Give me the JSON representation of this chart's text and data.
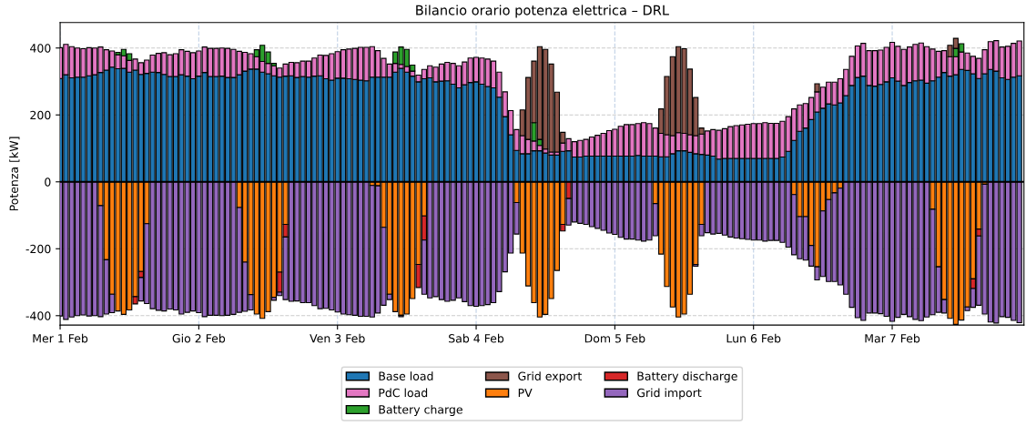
{
  "chart_data": {
    "type": "bar",
    "stacked": true,
    "title": "Bilancio orario potenza elettrica – DRL",
    "ylabel": "Potenza [kW]",
    "categories": [
      "Mer 1 Feb",
      null,
      null,
      null,
      null,
      null,
      null,
      null,
      null,
      null,
      null,
      null,
      null,
      null,
      null,
      null,
      null,
      null,
      null,
      null,
      null,
      null,
      null,
      null,
      "Gio 2 Feb",
      null,
      null,
      null,
      null,
      null,
      null,
      null,
      null,
      null,
      null,
      null,
      null,
      null,
      null,
      null,
      null,
      null,
      null,
      null,
      null,
      null,
      null,
      null,
      "Ven 3 Feb",
      null,
      null,
      null,
      null,
      null,
      null,
      null,
      null,
      null,
      null,
      null,
      null,
      null,
      null,
      null,
      null,
      null,
      null,
      null,
      null,
      null,
      null,
      null,
      "Sab 4 Feb",
      null,
      null,
      null,
      null,
      null,
      null,
      null,
      null,
      null,
      null,
      null,
      null,
      null,
      null,
      null,
      null,
      null,
      null,
      null,
      null,
      null,
      null,
      null,
      "Dom 5 Feb",
      null,
      null,
      null,
      null,
      null,
      null,
      null,
      null,
      null,
      null,
      null,
      null,
      null,
      null,
      null,
      null,
      null,
      null,
      null,
      null,
      null,
      null,
      null,
      "Lun 6 Feb",
      null,
      null,
      null,
      null,
      null,
      null,
      null,
      null,
      null,
      null,
      null,
      null,
      null,
      null,
      null,
      null,
      null,
      null,
      null,
      null,
      null,
      null,
      null,
      "Mar 7 Feb",
      null,
      null,
      null,
      null,
      null,
      null,
      null,
      null,
      null,
      null,
      null,
      null,
      null,
      null,
      null,
      null,
      null,
      null,
      null,
      null,
      null,
      null
    ],
    "ylim": [
      -428,
      476
    ],
    "yticks": [
      -400,
      -200,
      0,
      200,
      400
    ],
    "grid": true,
    "legend": "bottom",
    "ref_lines": [
      {
        "axis": "y",
        "value": 0,
        "color": "#000000"
      }
    ],
    "series": [
      {
        "name": "Base load",
        "color": "#1f77b4",
        "values": [
          309,
          320,
          311,
          313,
          313,
          317,
          320,
          327,
          334,
          343,
          338,
          339,
          328,
          334,
          321,
          324,
          328,
          327,
          321,
          315,
          315,
          320,
          316,
          308,
          316,
          327,
          315,
          315,
          316,
          312,
          312,
          320,
          331,
          337,
          337,
          328,
          323,
          317,
          313,
          316,
          317,
          312,
          315,
          313,
          316,
          317,
          308,
          304,
          310,
          310,
          308,
          306,
          304,
          302,
          313,
          313,
          313,
          313,
          328,
          339,
          328,
          316,
          299,
          308,
          311,
          299,
          301,
          302,
          292,
          281,
          290,
          297,
          299,
          292,
          285,
          281,
          253,
          195,
          141,
          94,
          84,
          84,
          93,
          93,
          86,
          80,
          80,
          91,
          93,
          74,
          74,
          77,
          77,
          77,
          77,
          77,
          77,
          77,
          77,
          77,
          79,
          77,
          77,
          77,
          75,
          75,
          84,
          93,
          93,
          88,
          84,
          82,
          80,
          77,
          68,
          70,
          70,
          70,
          70,
          70,
          70,
          70,
          70,
          70,
          70,
          74,
          91,
          124,
          151,
          161,
          186,
          209,
          220,
          233,
          230,
          236,
          258,
          288,
          312,
          316,
          288,
          286,
          291,
          299,
          311,
          301,
          288,
          297,
          302,
          304,
          295,
          302,
          313,
          327,
          316,
          320,
          336,
          333,
          323,
          309,
          323,
          336,
          331,
          311,
          306,
          313,
          317
        ]
      },
      {
        "name": "PdC load",
        "color": "#e377c2",
        "values": [
          92,
          91,
          93,
          87,
          85,
          84,
          80,
          76,
          61,
          48,
          42,
          38,
          35,
          33,
          35,
          40,
          51,
          57,
          65,
          65,
          68,
          75,
          74,
          78,
          75,
          76,
          84,
          84,
          84,
          87,
          84,
          70,
          56,
          46,
          37,
          32,
          31,
          30,
          27,
          36,
          40,
          44,
          46,
          48,
          54,
          62,
          70,
          79,
          79,
          85,
          89,
          93,
          98,
          100,
          91,
          79,
          56,
          39,
          26,
          12,
          17,
          15,
          20,
          28,
          36,
          44,
          51,
          55,
          62,
          66,
          68,
          73,
          73,
          78,
          82,
          80,
          75,
          74,
          72,
          62,
          54,
          43,
          29,
          16,
          12,
          9,
          9,
          25,
          36,
          46,
          50,
          50,
          57,
          62,
          68,
          76,
          80,
          89,
          94,
          94,
          95,
          100,
          97,
          84,
          70,
          66,
          54,
          54,
          52,
          53,
          54,
          61,
          72,
          79,
          86,
          89,
          95,
          98,
          100,
          102,
          104,
          104,
          107,
          105,
          105,
          107,
          104,
          94,
          79,
          73,
          66,
          60,
          63,
          65,
          68,
          72,
          78,
          87,
          94,
          98,
          104,
          106,
          103,
          103,
          106,
          104,
          108,
          106,
          109,
          111,
          109,
          95,
          77,
          65,
          58,
          54,
          52,
          52,
          52,
          60,
          72,
          83,
          91,
          92,
          99,
          101,
          104
        ]
      },
      {
        "name": "Battery charge",
        "color": "#2ca02c",
        "values": [
          0,
          0,
          0,
          0,
          0,
          0,
          0,
          0,
          0,
          0,
          7,
          19,
          20,
          0,
          0,
          0,
          0,
          0,
          0,
          0,
          0,
          0,
          0,
          0,
          0,
          0,
          0,
          0,
          0,
          0,
          0,
          0,
          0,
          0,
          21,
          48,
          34,
          7,
          0,
          0,
          0,
          0,
          0,
          0,
          0,
          0,
          0,
          0,
          0,
          0,
          0,
          0,
          0,
          0,
          0,
          0,
          0,
          0,
          34,
          52,
          51,
          18,
          0,
          0,
          0,
          0,
          0,
          0,
          0,
          0,
          0,
          0,
          0,
          0,
          0,
          0,
          0,
          0,
          0,
          0,
          0,
          0,
          55,
          18,
          0,
          0,
          0,
          0,
          0,
          0,
          0,
          0,
          0,
          0,
          0,
          0,
          0,
          0,
          0,
          0,
          0,
          0,
          0,
          0,
          0,
          0,
          0,
          0,
          0,
          0,
          0,
          0,
          0,
          0,
          0,
          0,
          0,
          0,
          0,
          0,
          0,
          0,
          0,
          0,
          0,
          0,
          0,
          0,
          0,
          0,
          0,
          0,
          0,
          0,
          0,
          0,
          0,
          0,
          0,
          0,
          0,
          0,
          0,
          0,
          0,
          0,
          0,
          0,
          0,
          0,
          0,
          0,
          0,
          0,
          0,
          25,
          25,
          0,
          0,
          0,
          0,
          0,
          0,
          0,
          0,
          0,
          0
        ]
      },
      {
        "name": "Grid export",
        "color": "#8c564b",
        "values": [
          0,
          0,
          0,
          0,
          0,
          0,
          0,
          0,
          0,
          0,
          0,
          0,
          0,
          0,
          0,
          0,
          0,
          0,
          0,
          0,
          0,
          0,
          0,
          0,
          0,
          0,
          0,
          0,
          0,
          0,
          0,
          0,
          0,
          0,
          0,
          0,
          0,
          0,
          0,
          0,
          0,
          0,
          0,
          0,
          0,
          0,
          0,
          0,
          0,
          0,
          0,
          0,
          0,
          0,
          0,
          0,
          0,
          0,
          0,
          0,
          0,
          0,
          0,
          0,
          0,
          0,
          0,
          0,
          0,
          0,
          0,
          0,
          0,
          0,
          0,
          0,
          0,
          0,
          0,
          0,
          77,
          185,
          184,
          277,
          298,
          263,
          179,
          32,
          0,
          0,
          0,
          0,
          0,
          0,
          0,
          0,
          0,
          0,
          0,
          0,
          0,
          0,
          0,
          0,
          73,
          174,
          236,
          257,
          253,
          196,
          114,
          18,
          0,
          0,
          0,
          0,
          0,
          0,
          0,
          0,
          0,
          0,
          0,
          0,
          0,
          0,
          0,
          0,
          0,
          0,
          0,
          24,
          0,
          0,
          0,
          0,
          0,
          0,
          0,
          0,
          0,
          0,
          0,
          0,
          0,
          0,
          0,
          0,
          0,
          0,
          0,
          0,
          0,
          0,
          34,
          30,
          0,
          0,
          0,
          0,
          0,
          0,
          0,
          0,
          0,
          0,
          0
        ]
      },
      {
        "name": "PV",
        "color": "#ff7f0e",
        "values": [
          0,
          0,
          0,
          0,
          0,
          0,
          0,
          -71,
          -233,
          -336,
          -386,
          -396,
          -383,
          -343,
          -268,
          -125,
          0,
          0,
          0,
          0,
          0,
          0,
          0,
          0,
          0,
          0,
          0,
          0,
          0,
          0,
          0,
          -77,
          -240,
          -337,
          -395,
          -408,
          -388,
          -345,
          -270,
          -127,
          0,
          0,
          0,
          0,
          0,
          0,
          0,
          0,
          0,
          0,
          0,
          0,
          0,
          0,
          -11,
          -12,
          -136,
          -336,
          -388,
          -399,
          -395,
          -349,
          -247,
          -102,
          0,
          0,
          0,
          0,
          0,
          0,
          0,
          0,
          0,
          0,
          0,
          0,
          0,
          0,
          0,
          -62,
          -213,
          -311,
          -361,
          -404,
          -396,
          -349,
          -265,
          -127,
          0,
          0,
          0,
          0,
          0,
          0,
          0,
          0,
          0,
          0,
          0,
          0,
          0,
          0,
          0,
          -65,
          -216,
          -313,
          -374,
          -404,
          -395,
          -336,
          -247,
          -127,
          0,
          0,
          0,
          0,
          0,
          0,
          0,
          0,
          0,
          0,
          0,
          0,
          0,
          0,
          0,
          -38,
          -104,
          -104,
          -190,
          -254,
          -87,
          -53,
          -33,
          -19,
          0,
          0,
          0,
          0,
          0,
          0,
          0,
          0,
          0,
          0,
          0,
          0,
          0,
          0,
          0,
          -82,
          -254,
          -352,
          -408,
          -426,
          -413,
          -374,
          -290,
          -141,
          -7,
          0,
          0,
          0,
          0,
          0,
          0
        ]
      },
      {
        "name": "Battery discharge",
        "color": "#d62728",
        "values": [
          0,
          0,
          0,
          0,
          0,
          0,
          0,
          0,
          0,
          0,
          0,
          0,
          0,
          -22,
          -18,
          0,
          0,
          0,
          0,
          0,
          0,
          0,
          0,
          0,
          0,
          0,
          0,
          0,
          0,
          0,
          0,
          0,
          0,
          0,
          0,
          0,
          0,
          0,
          -60,
          -38,
          0,
          0,
          0,
          0,
          0,
          0,
          0,
          0,
          0,
          0,
          0,
          0,
          0,
          0,
          0,
          0,
          0,
          0,
          0,
          0,
          0,
          0,
          -69,
          -72,
          0,
          0,
          0,
          0,
          0,
          0,
          0,
          0,
          0,
          0,
          0,
          0,
          0,
          0,
          0,
          0,
          0,
          0,
          0,
          0,
          0,
          0,
          0,
          -20,
          -50,
          0,
          0,
          0,
          0,
          0,
          0,
          0,
          0,
          0,
          0,
          0,
          0,
          0,
          0,
          0,
          0,
          0,
          0,
          0,
          0,
          0,
          0,
          0,
          0,
          0,
          0,
          0,
          0,
          0,
          0,
          0,
          0,
          0,
          0,
          0,
          0,
          0,
          0,
          0,
          0,
          0,
          0,
          0,
          0,
          0,
          0,
          0,
          0,
          0,
          0,
          0,
          0,
          0,
          0,
          0,
          0,
          0,
          0,
          0,
          0,
          0,
          0,
          0,
          0,
          0,
          0,
          0,
          0,
          0,
          -29,
          -21,
          0,
          0,
          0,
          0,
          0,
          0,
          0
        ]
      },
      {
        "name": "Grid import",
        "color": "#9467bd",
        "values": [
          -401,
          -411,
          -404,
          -400,
          -398,
          -401,
          -400,
          -332,
          -162,
          -55,
          0,
          0,
          0,
          0,
          -70,
          -239,
          -379,
          -384,
          -386,
          -380,
          -383,
          -395,
          -390,
          -386,
          -391,
          -403,
          -399,
          -399,
          -400,
          -399,
          -396,
          -313,
          -147,
          -46,
          0,
          0,
          0,
          -9,
          -10,
          -187,
          -357,
          -356,
          -361,
          -361,
          -370,
          -379,
          -378,
          -383,
          -389,
          -395,
          -397,
          -399,
          -402,
          -402,
          -393,
          -380,
          -233,
          -16,
          0,
          -4,
          0,
          0,
          0,
          -162,
          -347,
          -343,
          -352,
          -357,
          -354,
          -347,
          -358,
          -370,
          -372,
          -370,
          -367,
          -361,
          -328,
          -269,
          -213,
          -94,
          0,
          0,
          0,
          0,
          0,
          0,
          0,
          0,
          -79,
          -120,
          -124,
          -127,
          -134,
          -139,
          -145,
          -153,
          -157,
          -166,
          -171,
          -171,
          -174,
          -177,
          -174,
          -96,
          0,
          0,
          0,
          0,
          0,
          0,
          -5,
          -34,
          -152,
          -156,
          -154,
          -159,
          -165,
          -168,
          -170,
          -172,
          -174,
          -174,
          -177,
          -175,
          -175,
          -181,
          -195,
          -180,
          -126,
          -130,
          -62,
          -39,
          -196,
          -245,
          -265,
          -289,
          -336,
          -375,
          -406,
          -414,
          -392,
          -392,
          -394,
          -402,
          -417,
          -405,
          -396,
          -403,
          -411,
          -415,
          -404,
          -315,
          -136,
          -40,
          0,
          0,
          0,
          -11,
          -56,
          -207,
          -388,
          -419,
          -422,
          -403,
          -405,
          -414,
          -421
        ]
      }
    ]
  }
}
